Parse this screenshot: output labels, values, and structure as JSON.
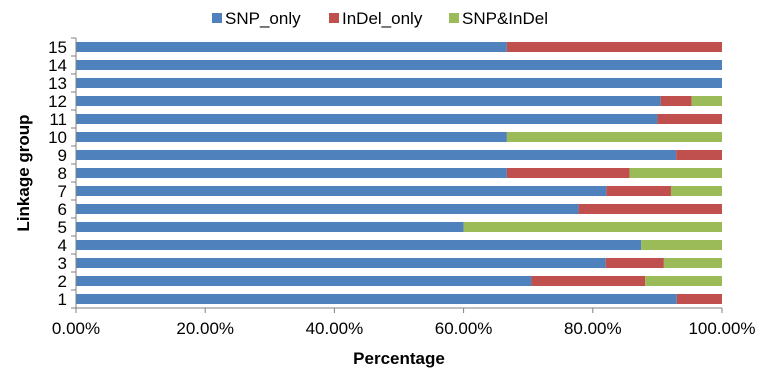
{
  "chart_data": {
    "type": "bar",
    "orientation": "horizontal",
    "stacked": "percent",
    "title": "",
    "xlabel": "Percentage",
    "ylabel": "Linkage group",
    "xlim": [
      0,
      100
    ],
    "x_ticks": [
      "0.00%",
      "20.00%",
      "40.00%",
      "60.00%",
      "80.00%",
      "100.00%"
    ],
    "categories": [
      "1",
      "2",
      "3",
      "4",
      "5",
      "6",
      "7",
      "8",
      "9",
      "10",
      "11",
      "12",
      "13",
      "14",
      "15"
    ],
    "series": [
      {
        "name": "SNP_only",
        "color": "#4f81bd",
        "values": [
          93,
          70.5,
          82,
          87.5,
          60,
          77.8,
          82.1,
          66.7,
          92.9,
          66.7,
          90,
          90.5,
          100,
          100,
          66.7
        ]
      },
      {
        "name": "InDel_only",
        "color": "#c0504d",
        "values": [
          7,
          17.6,
          9,
          0,
          0,
          22.2,
          10,
          19,
          7.1,
          0,
          10,
          4.8,
          0,
          0,
          33.3
        ]
      },
      {
        "name": "SNP&InDel",
        "color": "#9bbb59",
        "values": [
          0,
          11.9,
          9,
          12.5,
          40,
          0,
          7.9,
          14.3,
          0,
          33.3,
          0,
          4.7,
          0,
          0,
          0
        ]
      }
    ],
    "legend": "top",
    "grid": false
  }
}
